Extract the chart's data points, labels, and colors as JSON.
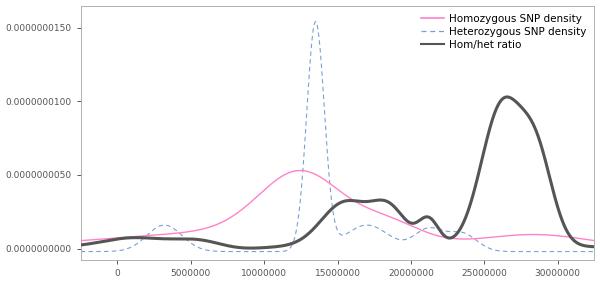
{
  "xlim": [
    -2500000,
    32500000
  ],
  "ylim": [
    -8e-10,
    1.65e-08
  ],
  "yticks": [
    0.0,
    5e-09,
    1e-08,
    1.5e-08
  ],
  "xticks": [
    0,
    5000000,
    10000000,
    15000000,
    20000000,
    25000000,
    30000000
  ],
  "xtick_labels": [
    "0",
    "5000000",
    "10000000",
    "15000000",
    "20000000",
    "25000000",
    "30000000"
  ],
  "hom_color": "#ff82c8",
  "het_color": "#7b9fd4",
  "ratio_color": "#555555",
  "background_color": "#ffffff",
  "legend_labels": [
    "Homozygous SNP density",
    "Heterozygous SNP density",
    "Hom/het ratio"
  ],
  "hom_linewidth": 1.0,
  "het_linewidth": 0.8,
  "ratio_linewidth": 2.2,
  "legend_fontsize": 7.5,
  "tick_fontsize": 6.5
}
